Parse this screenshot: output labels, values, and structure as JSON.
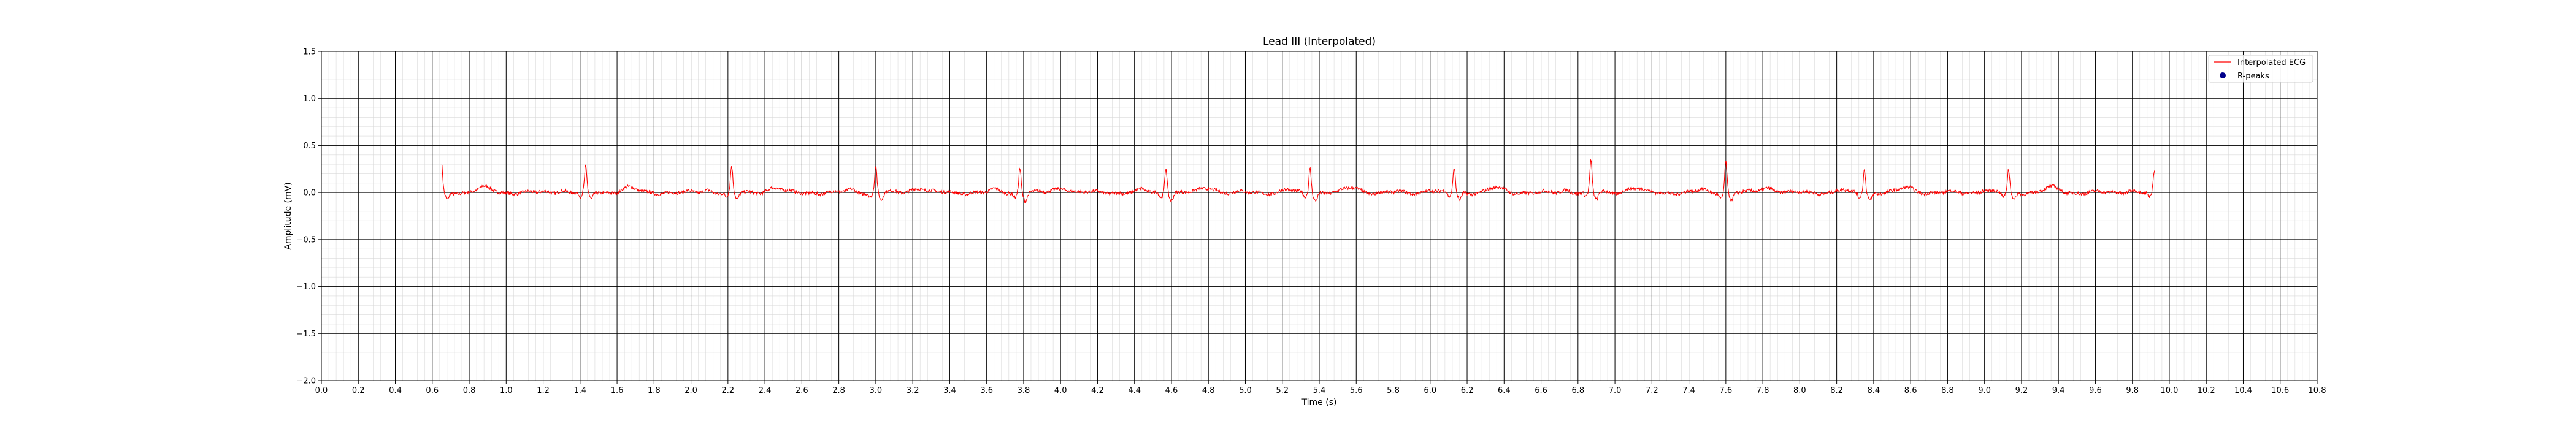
{
  "chart_data": {
    "type": "line",
    "title": "Lead III (Interpolated)",
    "xlabel": "Time (s)",
    "ylabel": "Amplitude (mV)",
    "xlim": [
      0.0,
      10.8
    ],
    "ylim": [
      -2.0,
      1.5
    ],
    "xticks": [
      "0.0",
      "0.2",
      "0.4",
      "0.6",
      "0.8",
      "1.0",
      "1.2",
      "1.4",
      "1.6",
      "1.8",
      "2.0",
      "2.2",
      "2.4",
      "2.6",
      "2.8",
      "3.0",
      "3.2",
      "3.4",
      "3.6",
      "3.8",
      "4.0",
      "4.2",
      "4.4",
      "4.6",
      "4.8",
      "5.0",
      "5.2",
      "5.4",
      "5.6",
      "5.8",
      "6.0",
      "6.2",
      "6.4",
      "6.6",
      "6.8",
      "7.0",
      "7.2",
      "7.4",
      "7.6",
      "7.8",
      "8.0",
      "8.2",
      "8.4",
      "8.6",
      "8.8",
      "9.0",
      "9.2",
      "9.4",
      "9.6",
      "9.8",
      "10.0",
      "10.2",
      "10.4",
      "10.6",
      "10.8"
    ],
    "yticks": [
      "−2.0",
      "−1.5",
      "−1.0",
      "−0.5",
      "0.0",
      "0.5",
      "1.0",
      "1.5"
    ],
    "grid": true,
    "legend_position": "top-right",
    "series": [
      {
        "name": "Interpolated ECG",
        "color": "#ff0000",
        "start": 0.65,
        "end": 9.92,
        "beats": [
          {
            "t": 0.65,
            "amp": 0.3
          },
          {
            "t": 1.43,
            "amp": 0.26
          },
          {
            "t": 2.22,
            "amp": 0.27
          },
          {
            "t": 3.0,
            "amp": 0.29
          },
          {
            "t": 3.78,
            "amp": 0.27
          },
          {
            "t": 4.57,
            "amp": 0.28
          },
          {
            "t": 5.35,
            "amp": 0.27
          },
          {
            "t": 6.13,
            "amp": 0.27
          },
          {
            "t": 6.87,
            "amp": 0.33
          },
          {
            "t": 7.6,
            "amp": 0.34
          },
          {
            "t": 8.35,
            "amp": 0.25
          },
          {
            "t": 9.13,
            "amp": 0.24
          },
          {
            "t": 9.92,
            "amp": 0.23
          }
        ]
      },
      {
        "name": "R-peaks",
        "color": "#00008b",
        "values": []
      }
    ]
  }
}
